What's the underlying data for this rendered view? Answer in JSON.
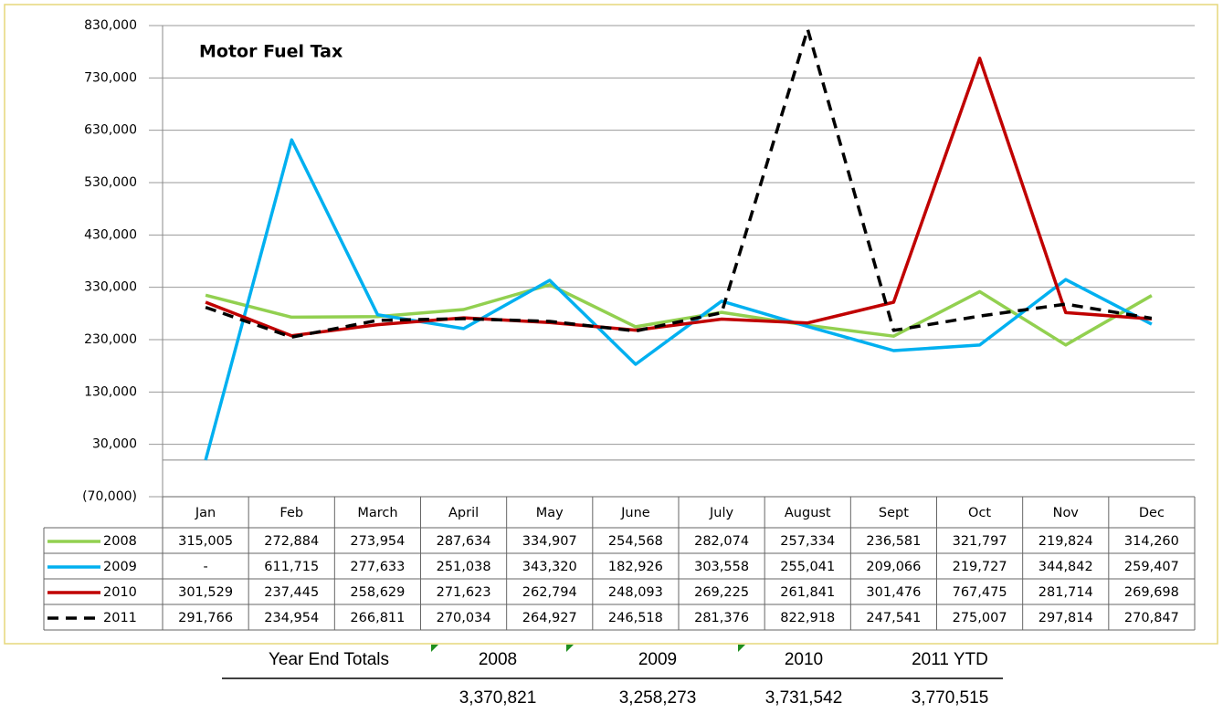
{
  "chart_data": {
    "type": "line",
    "title": "Motor Fuel Tax",
    "categories": [
      "Jan",
      "Feb",
      "March",
      "April",
      "May",
      "June",
      "July",
      "August",
      "Sept",
      "Oct",
      "Nov",
      "Dec"
    ],
    "series": [
      {
        "name": "2008",
        "color": "#92d050",
        "line_style": "solid",
        "values": [
          315005,
          272884,
          273954,
          287634,
          334907,
          254568,
          282074,
          257334,
          236581,
          321797,
          219824,
          314260
        ],
        "value_labels": [
          "315,005",
          "272,884",
          "273,954",
          "287,634",
          "334,907",
          "254,568",
          "282,074",
          "257,334",
          "236,581",
          "321,797",
          "219,824",
          "314,260"
        ]
      },
      {
        "name": "2009",
        "color": "#00b0f0",
        "line_style": "solid",
        "values": [
          0,
          611715,
          277633,
          251038,
          343320,
          182926,
          303558,
          255041,
          209066,
          219727,
          344842,
          259407
        ],
        "value_labels": [
          "-",
          "611,715",
          "277,633",
          "251,038",
          "343,320",
          "182,926",
          "303,558",
          "255,041",
          "209,066",
          "219,727",
          "344,842",
          "259,407"
        ]
      },
      {
        "name": "2010",
        "color": "#c00000",
        "line_style": "solid",
        "values": [
          301529,
          237445,
          258629,
          271623,
          262794,
          248093,
          269225,
          261841,
          301476,
          767475,
          281714,
          269698
        ],
        "value_labels": [
          "301,529",
          "237,445",
          "258,629",
          "271,623",
          "262,794",
          "248,093",
          "269,225",
          "261,841",
          "301,476",
          "767,475",
          "281,714",
          "269,698"
        ]
      },
      {
        "name": "2011",
        "color": "#000000",
        "line_style": "dashed",
        "values": [
          291766,
          234954,
          266811,
          270034,
          264927,
          246518,
          281376,
          822918,
          247541,
          275007,
          297814,
          270847
        ],
        "value_labels": [
          "291,766",
          "234,954",
          "266,811",
          "270,034",
          "264,927",
          "246,518",
          "281,376",
          "822,918",
          "247,541",
          "275,007",
          "297,814",
          "270,847"
        ]
      }
    ],
    "ylim": [
      -70000,
      830000
    ],
    "yticks": [
      {
        "value": -70000,
        "label": "(70,000)"
      },
      {
        "value": 30000,
        "label": "30,000"
      },
      {
        "value": 130000,
        "label": "130,000"
      },
      {
        "value": 230000,
        "label": "230,000"
      },
      {
        "value": 330000,
        "label": "330,000"
      },
      {
        "value": 430000,
        "label": "430,000"
      },
      {
        "value": 530000,
        "label": "530,000"
      },
      {
        "value": 630000,
        "label": "630,000"
      },
      {
        "value": 730000,
        "label": "730,000"
      },
      {
        "value": 830000,
        "label": "830,000"
      }
    ],
    "grid": true
  },
  "year_end_totals": {
    "label": "Year End Totals",
    "columns": [
      "2008",
      "2009",
      "2010",
      "2011 YTD"
    ],
    "values": [
      "3,370,821",
      "3,258,273",
      "3,731,542",
      "3,770,515"
    ]
  }
}
